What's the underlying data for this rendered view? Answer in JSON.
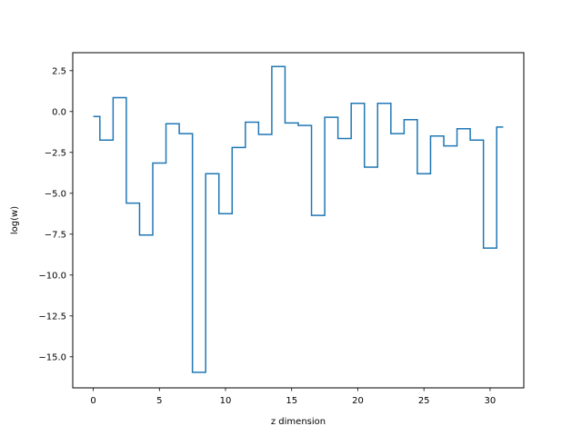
{
  "chart_data": {
    "type": "line",
    "drawstyle": "steps-mid",
    "title": "",
    "xlabel": "z dimension",
    "ylabel": "log(w)",
    "xlim": [
      -1.55,
      32.55
    ],
    "ylim": [
      -16.9,
      3.6
    ],
    "grid": false,
    "x_ticks": [
      0,
      5,
      10,
      15,
      20,
      25,
      30
    ],
    "y_ticks": [
      2.5,
      0.0,
      -2.5,
      -5.0,
      -7.5,
      -10.0,
      -12.5,
      -15.0
    ],
    "y_tick_labels": [
      "2.5",
      "0.0",
      "−2.5",
      "−5.0",
      "−7.5",
      "−10.0",
      "−12.5",
      "−15.0"
    ],
    "line_color": "#1f77b4",
    "series": [
      {
        "x": [
          0,
          1,
          2,
          3,
          4,
          5,
          6,
          7,
          8,
          9,
          10,
          11,
          12,
          13,
          14,
          15,
          16,
          17,
          18,
          19,
          20,
          21,
          22,
          23,
          24,
          25,
          26,
          27,
          28,
          29,
          30,
          31
        ],
        "values": [
          -0.3,
          -1.75,
          0.85,
          -5.6,
          -7.55,
          -3.15,
          -0.75,
          -1.35,
          -15.95,
          -3.8,
          -6.25,
          -2.2,
          -0.65,
          -1.4,
          2.75,
          -0.7,
          -0.85,
          -6.35,
          -0.35,
          -1.65,
          0.5,
          -3.4,
          0.5,
          -1.35,
          -0.5,
          -3.8,
          -1.5,
          -2.1,
          -1.05,
          -1.75,
          -8.35,
          -0.95
        ]
      }
    ]
  }
}
